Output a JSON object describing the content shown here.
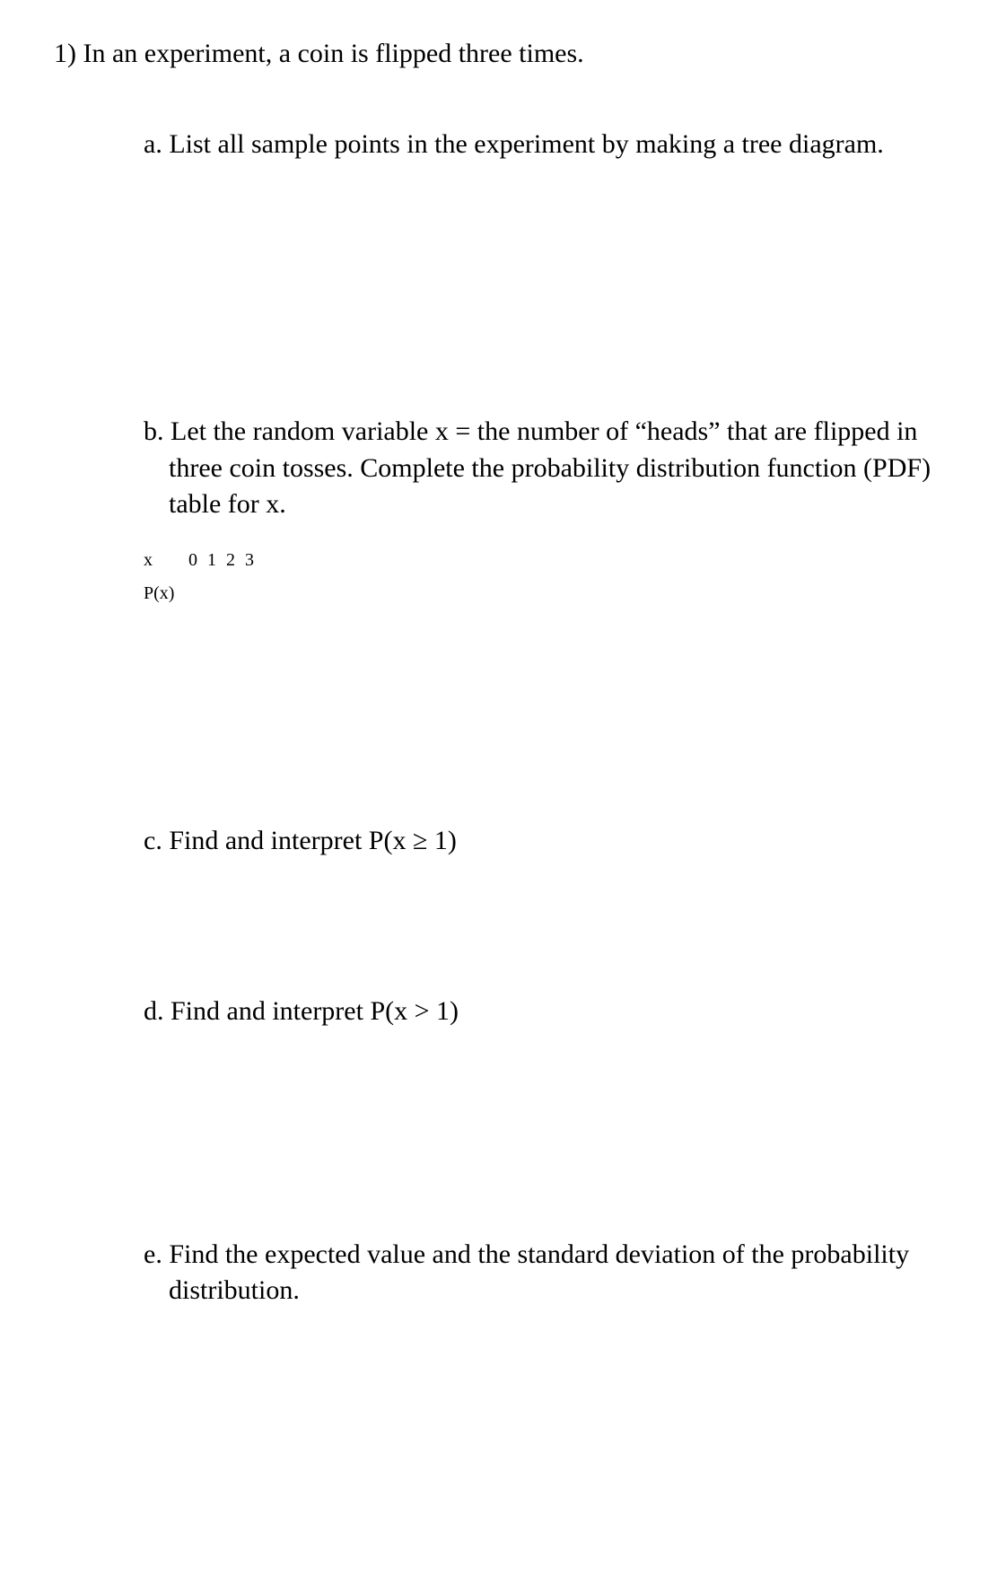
{
  "page": {
    "background_color": "#ffffff",
    "text_color": "#000000",
    "font_family": "Times New Roman",
    "base_fontsize_pt": 22
  },
  "question": {
    "number_label": "1)",
    "stem": "In an experiment, a coin is flipped three times.",
    "parts": {
      "a": {
        "label": "a.",
        "text": "List all sample points in the experiment by making a tree diagram."
      },
      "b": {
        "label": "b.",
        "text": "Let the random variable x = the number of “heads” that are flipped in three coin tosses. Complete the probability distribution function (PDF) table for x.",
        "table": {
          "row_label_x": "x",
          "x_values": "0 1 2 3",
          "row_label_px": "P(x)",
          "px_values": ""
        }
      },
      "c": {
        "label": "c.",
        "text": "Find and interpret P(x ≥ 1)"
      },
      "d": {
        "label": "d.",
        "text": "Find and interpret P(x > 1)"
      },
      "e": {
        "label": "e.",
        "text": "Find the expected value and the standard deviation of the probability distribution."
      }
    }
  }
}
